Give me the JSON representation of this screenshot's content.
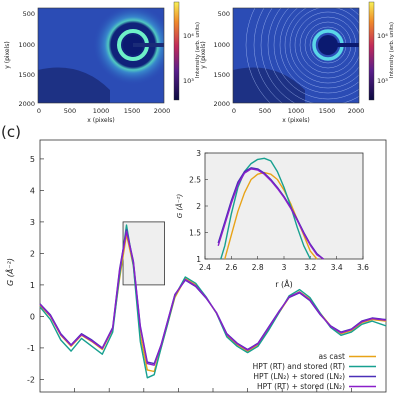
{
  "panel_label": "(c)",
  "colors": {
    "as_cast": "#e8a317",
    "rt_rt": "#17a090",
    "ln2_ln2": "#4a2fb8",
    "rt_ln2": "#8a1fc9",
    "inset_bg": "#efefef",
    "detector_bg": "#1f3aa0",
    "detector_ring": "#58e0c4"
  },
  "detector_panels": [
    {
      "ylabel": "y (pixels)",
      "xlabel": "x (pixels)",
      "yticks": [
        "500",
        "1000",
        "1500",
        "2000"
      ],
      "xticks": [
        "0",
        "500",
        "1000",
        "1500",
        "2000"
      ],
      "cbar_label": "Intensity (arb. units)",
      "cbar_ticks": [
        "10⁴",
        "10³"
      ],
      "rings": "few"
    },
    {
      "ylabel": "y (pixels)",
      "xlabel": "x (pixels)",
      "yticks": [
        "500",
        "1000",
        "1500",
        "2000"
      ],
      "xticks": [
        "0",
        "500",
        "1000",
        "1500",
        "2000"
      ],
      "cbar_label": "Intensity (arb. units)",
      "cbar_ticks": [
        "10⁴",
        "10³"
      ],
      "rings": "many"
    }
  ],
  "chart_data": [
    {
      "type": "line",
      "title": "",
      "xlabel": "",
      "ylabel": "G (Å⁻²)",
      "xlim": [
        0.0,
        10.0
      ],
      "ylim": [
        -2.4,
        5.6
      ],
      "yticks": [
        -2,
        -1,
        0,
        1,
        2,
        3,
        4,
        5
      ],
      "grid": false,
      "legend_position": "bottom-right",
      "series": [
        {
          "name": "as cast",
          "color_key": "as_cast",
          "x": [
            0.0,
            0.3,
            0.6,
            0.9,
            1.2,
            1.5,
            1.8,
            2.1,
            2.3,
            2.5,
            2.7,
            2.9,
            3.1,
            3.3,
            3.5,
            3.7,
            3.9,
            4.2,
            4.5,
            4.8,
            5.1,
            5.4,
            5.7,
            6.0,
            6.3,
            6.6,
            6.9,
            7.2,
            7.5,
            7.8,
            8.1,
            8.4,
            8.7,
            9.0,
            9.3,
            9.6,
            10.0
          ],
          "y": [
            0.35,
            0.0,
            -0.6,
            -0.95,
            -0.6,
            -0.8,
            -1.05,
            -0.4,
            1.2,
            2.6,
            1.6,
            -0.6,
            -1.7,
            -1.75,
            -1.0,
            -0.2,
            0.6,
            1.2,
            1.0,
            0.6,
            0.1,
            -0.6,
            -0.9,
            -1.1,
            -0.9,
            -0.4,
            0.1,
            0.6,
            0.78,
            0.55,
            0.1,
            -0.3,
            -0.55,
            -0.45,
            -0.2,
            -0.1,
            -0.15
          ]
        },
        {
          "name": "HPT (RT) and stored (RT)",
          "color_key": "rt_rt",
          "x": [
            0.0,
            0.3,
            0.6,
            0.9,
            1.2,
            1.5,
            1.8,
            2.1,
            2.3,
            2.5,
            2.7,
            2.9,
            3.1,
            3.3,
            3.5,
            3.7,
            3.9,
            4.2,
            4.5,
            4.8,
            5.1,
            5.4,
            5.7,
            6.0,
            6.3,
            6.6,
            6.9,
            7.2,
            7.5,
            7.8,
            8.1,
            8.4,
            8.7,
            9.0,
            9.3,
            9.6,
            10.0
          ],
          "y": [
            0.3,
            -0.1,
            -0.75,
            -1.1,
            -0.7,
            -0.95,
            -1.2,
            -0.5,
            1.3,
            2.9,
            1.6,
            -0.8,
            -1.95,
            -1.85,
            -1.0,
            -0.2,
            0.65,
            1.25,
            1.05,
            0.62,
            0.1,
            -0.65,
            -0.95,
            -1.15,
            -0.95,
            -0.45,
            0.1,
            0.65,
            0.85,
            0.6,
            0.1,
            -0.35,
            -0.6,
            -0.5,
            -0.25,
            -0.15,
            -0.3
          ]
        },
        {
          "name": "HPT (LN₂) + stored (LN₂)",
          "color_key": "ln2_ln2",
          "x": [
            0.0,
            0.3,
            0.6,
            0.9,
            1.2,
            1.5,
            1.8,
            2.1,
            2.3,
            2.5,
            2.7,
            2.9,
            3.1,
            3.3,
            3.5,
            3.7,
            3.9,
            4.2,
            4.5,
            4.8,
            5.1,
            5.4,
            5.7,
            6.0,
            6.3,
            6.6,
            6.9,
            7.2,
            7.5,
            7.8,
            8.1,
            8.4,
            8.7,
            9.0,
            9.3,
            9.6,
            10.0
          ],
          "y": [
            0.4,
            0.05,
            -0.55,
            -0.9,
            -0.55,
            -0.75,
            -1.0,
            -0.35,
            1.5,
            2.75,
            1.75,
            -0.3,
            -1.45,
            -1.5,
            -0.9,
            -0.1,
            0.7,
            1.15,
            0.95,
            0.58,
            0.12,
            -0.55,
            -0.85,
            -1.05,
            -0.85,
            -0.35,
            0.15,
            0.6,
            0.75,
            0.5,
            0.05,
            -0.3,
            -0.5,
            -0.4,
            -0.15,
            -0.05,
            -0.1
          ]
        },
        {
          "name": "HPT (RT) + stored (LN₂)",
          "color_key": "rt_ln2",
          "x": [
            0.0,
            0.3,
            0.6,
            0.9,
            1.2,
            1.5,
            1.8,
            2.1,
            2.3,
            2.5,
            2.7,
            2.9,
            3.1,
            3.3,
            3.5,
            3.7,
            3.9,
            4.2,
            4.5,
            4.8,
            5.1,
            5.4,
            5.7,
            6.0,
            6.3,
            6.6,
            6.9,
            7.2,
            7.5,
            7.8,
            8.1,
            8.4,
            8.7,
            9.0,
            9.3,
            9.6,
            10.0
          ],
          "y": [
            0.38,
            0.02,
            -0.58,
            -0.92,
            -0.58,
            -0.78,
            -1.02,
            -0.38,
            1.45,
            2.7,
            1.72,
            -0.35,
            -1.5,
            -1.55,
            -0.92,
            -0.12,
            0.68,
            1.17,
            0.97,
            0.6,
            0.11,
            -0.57,
            -0.87,
            -1.07,
            -0.87,
            -0.37,
            0.13,
            0.62,
            0.77,
            0.52,
            0.07,
            -0.32,
            -0.52,
            -0.42,
            -0.17,
            -0.07,
            -0.12
          ]
        }
      ]
    },
    {
      "type": "line",
      "title": "",
      "xlabel": "r (Å)",
      "ylabel": "G (Å⁻²)",
      "xlim": [
        2.4,
        3.6
      ],
      "ylim": [
        1.0,
        3.0
      ],
      "xticks": [
        "2.4",
        "2.6",
        "2.8",
        "3",
        "3.2",
        "3.4",
        "3.6"
      ],
      "yticks": [
        "1",
        "1.5",
        "2",
        "2.5",
        "3"
      ],
      "series": [
        {
          "name": "as cast",
          "color_key": "as_cast",
          "x": [
            2.55,
            2.6,
            2.65,
            2.7,
            2.75,
            2.8,
            2.85,
            2.9,
            2.95,
            3.0,
            3.05,
            3.1,
            3.15,
            3.2,
            3.25
          ],
          "y": [
            1.0,
            1.45,
            1.9,
            2.25,
            2.5,
            2.6,
            2.63,
            2.6,
            2.5,
            2.3,
            2.05,
            1.75,
            1.45,
            1.15,
            1.0
          ]
        },
        {
          "name": "HPT (RT) and stored (RT)",
          "color_key": "rt_rt",
          "x": [
            2.52,
            2.55,
            2.6,
            2.65,
            2.7,
            2.75,
            2.8,
            2.85,
            2.9,
            2.95,
            3.0,
            3.05,
            3.1,
            3.15,
            3.2
          ],
          "y": [
            1.0,
            1.25,
            1.85,
            2.35,
            2.65,
            2.8,
            2.88,
            2.9,
            2.85,
            2.65,
            2.35,
            2.0,
            1.6,
            1.25,
            1.0
          ]
        },
        {
          "name": "HPT (LN₂) + stored (LN₂)",
          "color_key": "ln2_ln2",
          "x": [
            2.5,
            2.55,
            2.6,
            2.65,
            2.7,
            2.75,
            2.8,
            2.85,
            2.9,
            2.95,
            3.0,
            3.05,
            3.1,
            3.15,
            3.2,
            3.25,
            3.3
          ],
          "y": [
            1.3,
            1.7,
            2.1,
            2.45,
            2.65,
            2.72,
            2.7,
            2.62,
            2.5,
            2.35,
            2.18,
            1.98,
            1.75,
            1.5,
            1.28,
            1.1,
            1.0
          ]
        },
        {
          "name": "HPT (RT) + stored (LN₂)",
          "color_key": "rt_ln2",
          "x": [
            2.5,
            2.55,
            2.6,
            2.65,
            2.7,
            2.75,
            2.8,
            2.85,
            2.9,
            2.95,
            3.0,
            3.05,
            3.1,
            3.15,
            3.2,
            3.25,
            3.3
          ],
          "y": [
            1.25,
            1.65,
            2.05,
            2.4,
            2.62,
            2.7,
            2.68,
            2.6,
            2.48,
            2.33,
            2.16,
            1.96,
            1.73,
            1.48,
            1.26,
            1.08,
            1.0
          ]
        }
      ]
    }
  ]
}
